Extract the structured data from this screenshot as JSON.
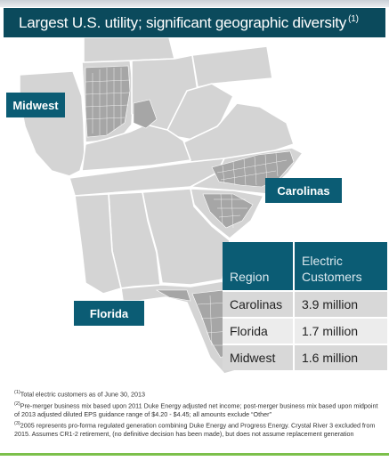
{
  "title": {
    "text": "Largest U.S. utility; significant geographic diversity",
    "footnote_ref": "(1)"
  },
  "map": {
    "labels": {
      "midwest": "Midwest",
      "carolinas": "Carolinas",
      "florida": "Florida"
    },
    "colors": {
      "state_fill": "#d4d4d4",
      "state_border": "#ffffff",
      "service_county": "#a6a6a6",
      "label_bg": "#0b5c74"
    }
  },
  "customers_table": {
    "header": {
      "region": "Region",
      "customers": "Electric Customers"
    },
    "rows": [
      {
        "region": "Carolinas",
        "customers": "3.9 million"
      },
      {
        "region": "Florida",
        "customers": "1.7 million"
      },
      {
        "region": "Midwest",
        "customers": "1.6 million"
      }
    ]
  },
  "footnotes": [
    {
      "ref": "(1)",
      "text": "Total electric customers as of June 30, 2013"
    },
    {
      "ref": "(2)",
      "text": "Pre-merger business mix based upon 2011 Duke Energy adjusted net income; post-merger business mix based upon midpoint of 2013 adjusted diluted EPS guidance range of $4.20 - $4.45; all amounts exclude “Other”"
    },
    {
      "ref": "(3)",
      "text": "2005 represents pro-forma regulated generation combining Duke Energy and Progress Energy. Crystal River 3 excluded from 2015. Assumes CR1-2 retirement, (no definitive decision has been made), but does not assume replacement generation"
    }
  ]
}
